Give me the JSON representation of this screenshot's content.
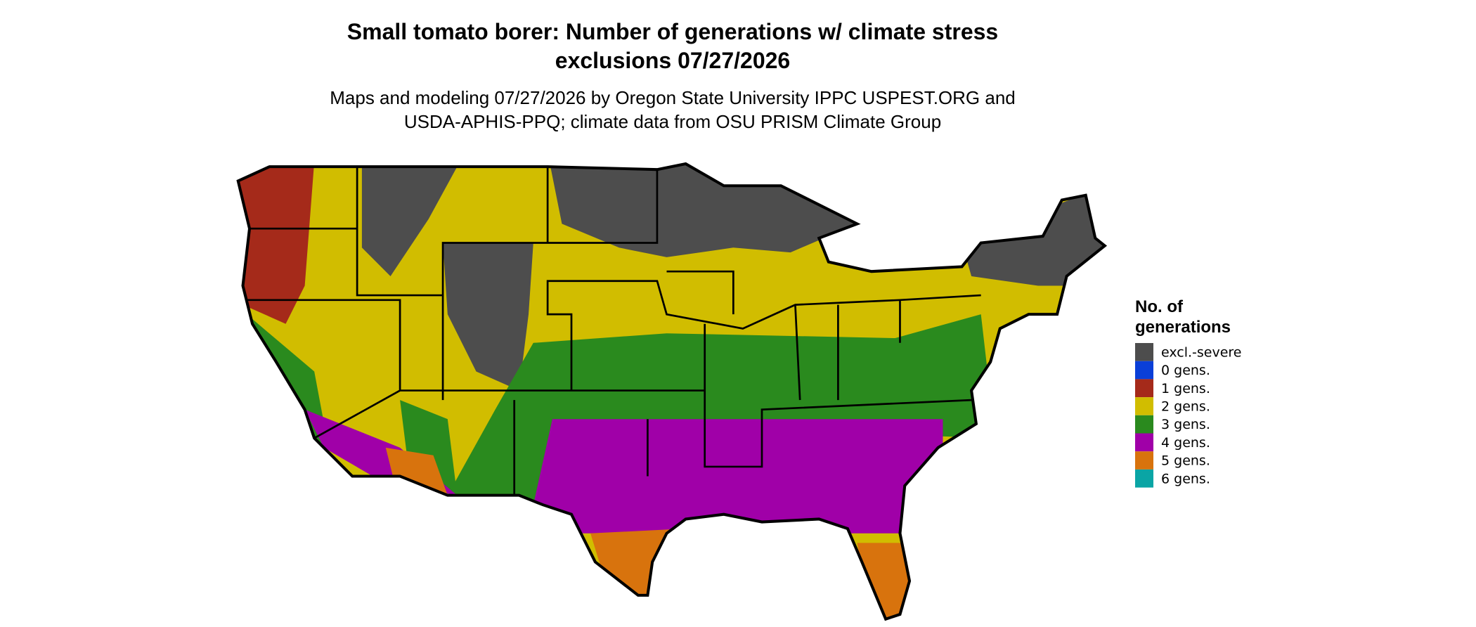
{
  "header": {
    "title_lines": [
      "Small tomato borer: Number of generations w/ climate stress",
      "exclusions 07/27/2026"
    ],
    "subtitle_lines": [
      "Maps and modeling 07/27/2026 by Oregon State University IPPC USPEST.ORG and",
      "USDA-APHIS-PPQ; climate data from OSU PRISM Climate Group"
    ]
  },
  "legend": {
    "title_lines": [
      "No. of",
      "generations"
    ],
    "items": [
      {
        "label": "excl.-severe",
        "color": "#4d4d4d"
      },
      {
        "label": "0 gens.",
        "color": "#0a3fd8"
      },
      {
        "label": "1 gens.",
        "color": "#a52a1a"
      },
      {
        "label": "2 gens.",
        "color": "#d1bd00"
      },
      {
        "label": "3 gens.",
        "color": "#2a8a1e"
      },
      {
        "label": "4 gens.",
        "color": "#a000a8"
      },
      {
        "label": "5 gens.",
        "color": "#d8730d"
      },
      {
        "label": "6 gens.",
        "color": "#0aa5a5"
      }
    ]
  }
}
